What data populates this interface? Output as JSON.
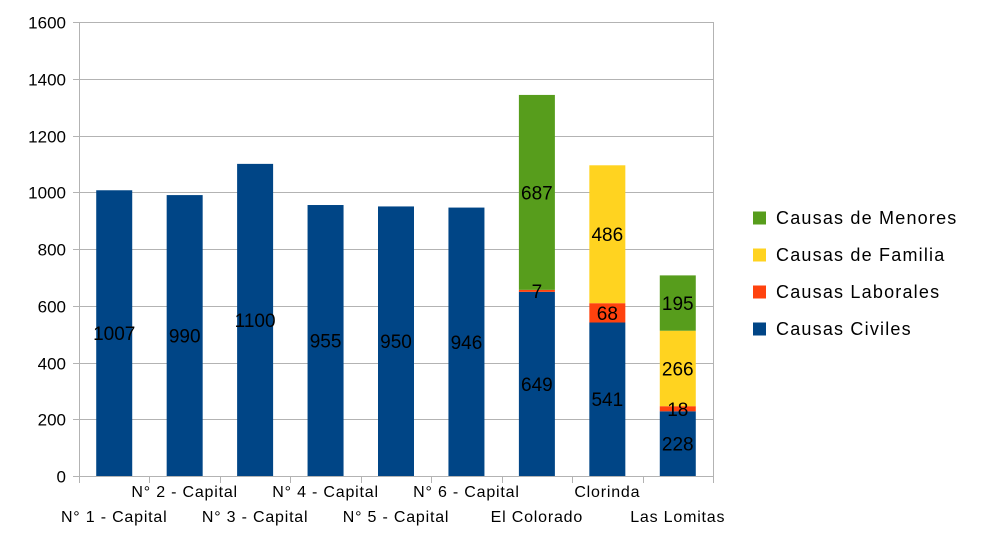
{
  "chart_data": {
    "type": "bar",
    "stacked": true,
    "categories": [
      "N° 1 - Capital",
      "N° 2 - Capital",
      "N° 3 - Capital",
      "N° 4 - Capital",
      "N° 5 - Capital",
      "N° 6 - Capital",
      "El Colorado",
      "Clorinda",
      "Las Lomitas"
    ],
    "series": [
      {
        "name": "Causas Civiles",
        "color": "#004586",
        "values": [
          1007,
          990,
          1100,
          955,
          950,
          946,
          649,
          541,
          228
        ]
      },
      {
        "name": "Causas Laborales",
        "color": "#ff420e",
        "values": [
          null,
          null,
          null,
          null,
          null,
          null,
          7,
          68,
          18
        ]
      },
      {
        "name": "Causas de Familia",
        "color": "#ffd320",
        "values": [
          null,
          null,
          null,
          null,
          null,
          null,
          null,
          486,
          266
        ]
      },
      {
        "name": "Causas de Menores",
        "color": "#579d1c",
        "values": [
          null,
          null,
          null,
          null,
          null,
          null,
          687,
          null,
          195
        ]
      }
    ],
    "legend_order": [
      "Causas de Menores",
      "Causas de Familia",
      "Causas Laborales",
      "Causas Civiles"
    ],
    "yticks": [
      0,
      200,
      400,
      600,
      800,
      1000,
      1200,
      1400,
      1600
    ],
    "ylim": [
      0,
      1600
    ],
    "grid": true,
    "legend_position": "right",
    "title": "",
    "xlabel": "",
    "ylabel": ""
  }
}
